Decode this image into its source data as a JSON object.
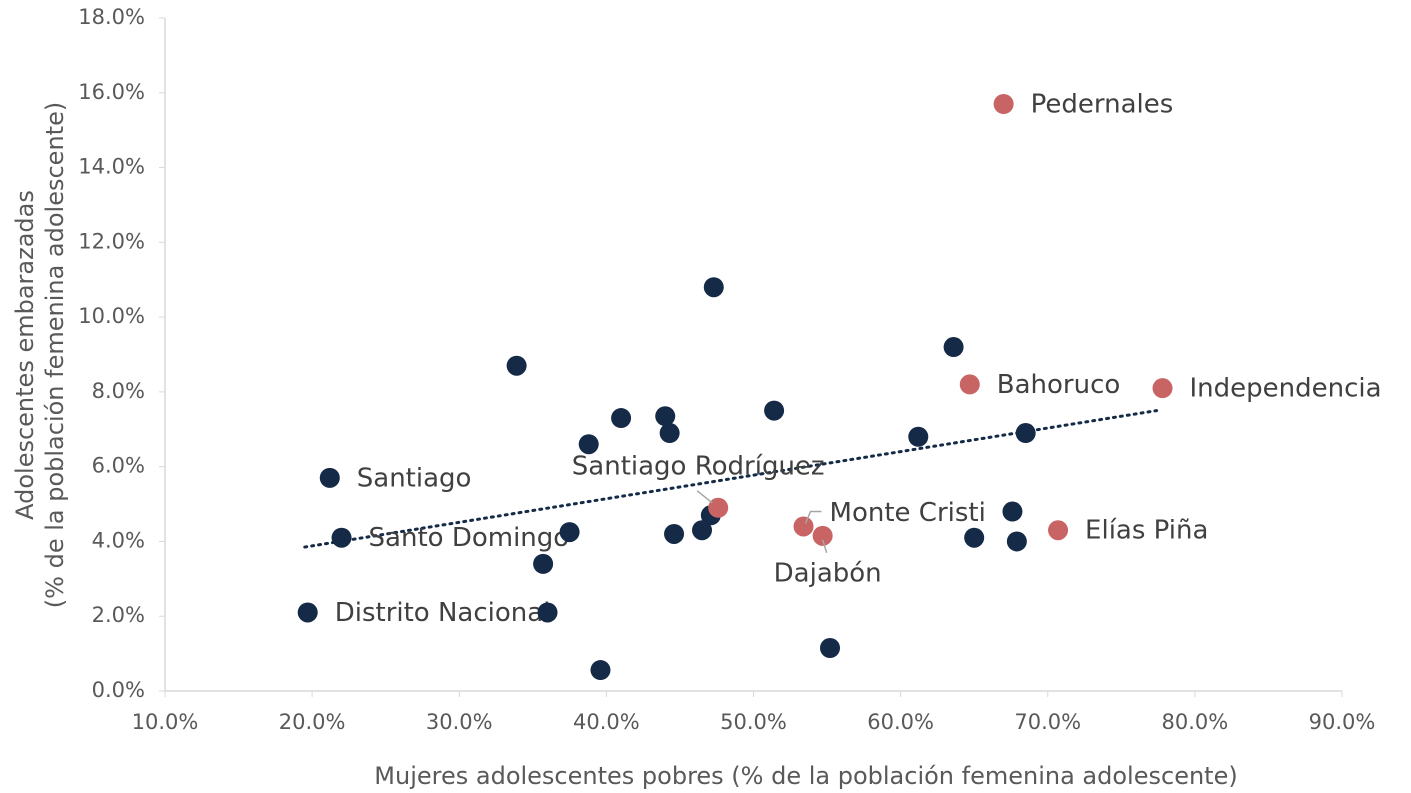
{
  "chart_data": {
    "type": "scatter",
    "xlabel": "Mujeres adolescentes pobres (% de la población femenina adolescente)",
    "ylabel": [
      "Adolescentes embarazadas",
      "(% de la población femenina adolescente)"
    ],
    "xlim": [
      10,
      90
    ],
    "xticks": [
      {
        "value": 10,
        "label": "10.0%"
      },
      {
        "value": 20,
        "label": "20.0%"
      },
      {
        "value": 30,
        "label": "30.0%"
      },
      {
        "value": 40,
        "label": "40.0%"
      },
      {
        "value": 50,
        "label": "50.0%"
      },
      {
        "value": 60,
        "label": "60.0%"
      },
      {
        "value": 70,
        "label": "70.0%"
      },
      {
        "value": 80,
        "label": "80.0%"
      },
      {
        "value": 90,
        "label": "90.0%"
      }
    ],
    "ylim": [
      0,
      18
    ],
    "yticks": [
      {
        "value": 0,
        "label": "0.0%"
      },
      {
        "value": 2,
        "label": "2.0%"
      },
      {
        "value": 4,
        "label": "4.0%"
      },
      {
        "value": 6,
        "label": "6.0%"
      },
      {
        "value": 8,
        "label": "8.0%"
      },
      {
        "value": 10,
        "label": "10.0%"
      },
      {
        "value": 12,
        "label": "12.0%"
      },
      {
        "value": 14,
        "label": "14.0%"
      },
      {
        "value": 16,
        "label": "16.0%"
      },
      {
        "value": 18,
        "label": "18.0%"
      }
    ],
    "series": [
      {
        "color": "#152a47",
        "x": [
          21.2,
          22.0,
          19.7,
          33.9,
          38.8,
          41.0,
          37.5,
          35.7,
          36.0,
          39.6,
          44.0,
          44.3,
          44.6,
          46.5,
          47.1,
          47.3,
          51.4,
          55.2,
          61.2,
          63.6,
          65.0,
          67.6,
          67.9,
          68.5
        ],
        "values": [
          5.7,
          4.1,
          2.1,
          8.7,
          6.6,
          7.3,
          4.25,
          3.4,
          2.1,
          0.56,
          7.35,
          6.9,
          4.2,
          4.3,
          4.7,
          10.8,
          7.5,
          1.15,
          6.8,
          9.2,
          4.1,
          4.8,
          4.0,
          6.9
        ],
        "labels": [
          "Santiago",
          "Santo Domingo",
          "Distrito Nacional",
          null,
          null,
          null,
          null,
          null,
          null,
          null,
          null,
          null,
          null,
          null,
          null,
          null,
          null,
          null,
          null,
          null,
          null,
          null,
          null,
          null
        ]
      },
      {
        "color": "#c96464",
        "x": [
          67.0,
          64.7,
          77.8,
          70.7,
          47.6,
          53.4,
          54.7
        ],
        "values": [
          15.7,
          8.2,
          8.1,
          4.3,
          4.9,
          4.4,
          4.15
        ],
        "labels": [
          "Pedernales",
          "Bahoruco",
          "Independencia",
          "Elías Piña",
          "Santiago Rodríguez",
          "Monte Cristi",
          "Dajabón"
        ]
      }
    ],
    "trendline": {
      "color": "#152a47",
      "x": [
        19.5,
        77.4
      ],
      "values": [
        3.85,
        7.5
      ]
    }
  }
}
